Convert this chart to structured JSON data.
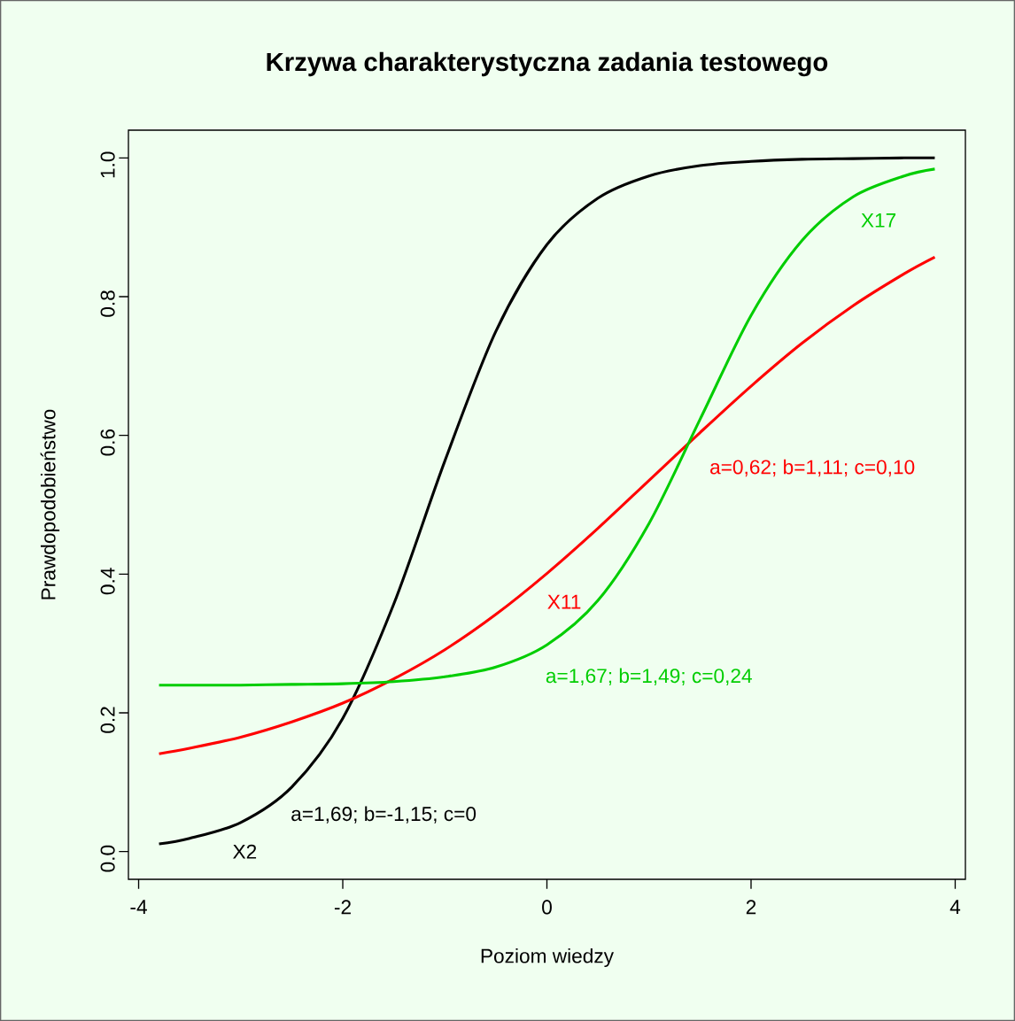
{
  "chart_data": {
    "type": "line",
    "title": "Krzywa charakterystyczna zadania testowego",
    "xlabel": "Poziom wiedzy",
    "ylabel": "Prawdopodobieństwo",
    "x": [
      -3.8,
      -3.5,
      -3,
      -2.5,
      -2,
      -1.5,
      -1,
      -0.5,
      0,
      0.5,
      1,
      1.5,
      2,
      2.5,
      3,
      3.5,
      3.8
    ],
    "series": [
      {
        "color": "#000000",
        "values": [
          0.011,
          0.019,
          0.042,
          0.093,
          0.192,
          0.357,
          0.563,
          0.75,
          0.875,
          0.942,
          0.974,
          0.989,
          0.995,
          0.998,
          0.999,
          1.0,
          1.0
        ]
      },
      {
        "color": "#ff0000",
        "values": [
          0.141,
          0.149,
          0.165,
          0.187,
          0.214,
          0.249,
          0.291,
          0.342,
          0.401,
          0.466,
          0.535,
          0.604,
          0.671,
          0.733,
          0.787,
          0.833,
          0.857
        ]
      },
      {
        "color": "#00cd00",
        "values": [
          0.24,
          0.24,
          0.24,
          0.241,
          0.242,
          0.245,
          0.252,
          0.266,
          0.298,
          0.362,
          0.473,
          0.623,
          0.773,
          0.881,
          0.944,
          0.974,
          0.984
        ]
      }
    ],
    "annotations": [
      "X2",
      "a=1,69; b=-1,15; c=0",
      "X11",
      "a=0,62; b=1,11; c=0,10",
      "X17",
      "a=1,67; b=1,49; c=0,24"
    ],
    "xlim": [
      -4.1,
      4.1
    ],
    "ylim": [
      -0.04,
      1.04
    ],
    "xticks": [
      -4,
      -2,
      0,
      2,
      4
    ],
    "yticks": [
      {
        "value": 0,
        "label": "0.0"
      },
      {
        "value": 0.2,
        "label": "0.2"
      },
      {
        "value": 0.4,
        "label": "0.4"
      },
      {
        "value": 0.6,
        "label": "0.6"
      },
      {
        "value": 0.8,
        "label": "0.8"
      },
      {
        "value": 1,
        "label": "1.0"
      }
    ],
    "grid": false,
    "marker": "none",
    "line_style": "solid"
  }
}
